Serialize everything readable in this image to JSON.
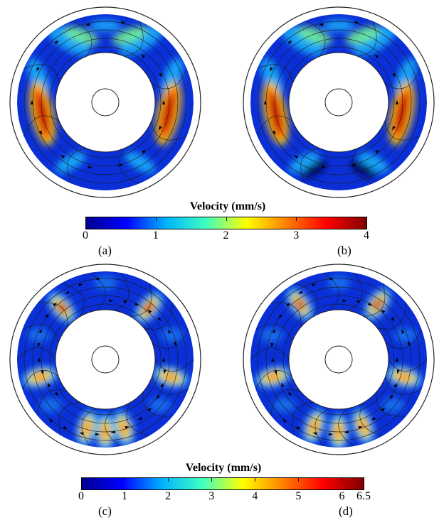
{
  "figure": {
    "panels": [
      {
        "label": "(a)",
        "name": "panel-a",
        "style": "smooth"
      },
      {
        "label": "(b)",
        "name": "panel-b",
        "style": "smooth"
      },
      {
        "label": "(c)",
        "name": "panel-c",
        "style": "cells"
      },
      {
        "label": "(d)",
        "name": "panel-d",
        "style": "cells"
      }
    ]
  },
  "colorbars": [
    {
      "title": "Velocity (mm/s)",
      "min": 0,
      "max": 4,
      "ticks": [
        "0",
        "1",
        "2",
        "3",
        "4"
      ]
    },
    {
      "title": "Velocity (mm/s)",
      "min": 0,
      "max": 6.5,
      "ticks": [
        "0",
        "1",
        "2",
        "3",
        "4",
        "5",
        "6",
        "6.5"
      ]
    }
  ],
  "colormap": [
    "#00008f",
    "#0000ff",
    "#00b4ff",
    "#40ffbf",
    "#ffff00",
    "#ff8000",
    "#ff0000",
    "#800000"
  ]
}
